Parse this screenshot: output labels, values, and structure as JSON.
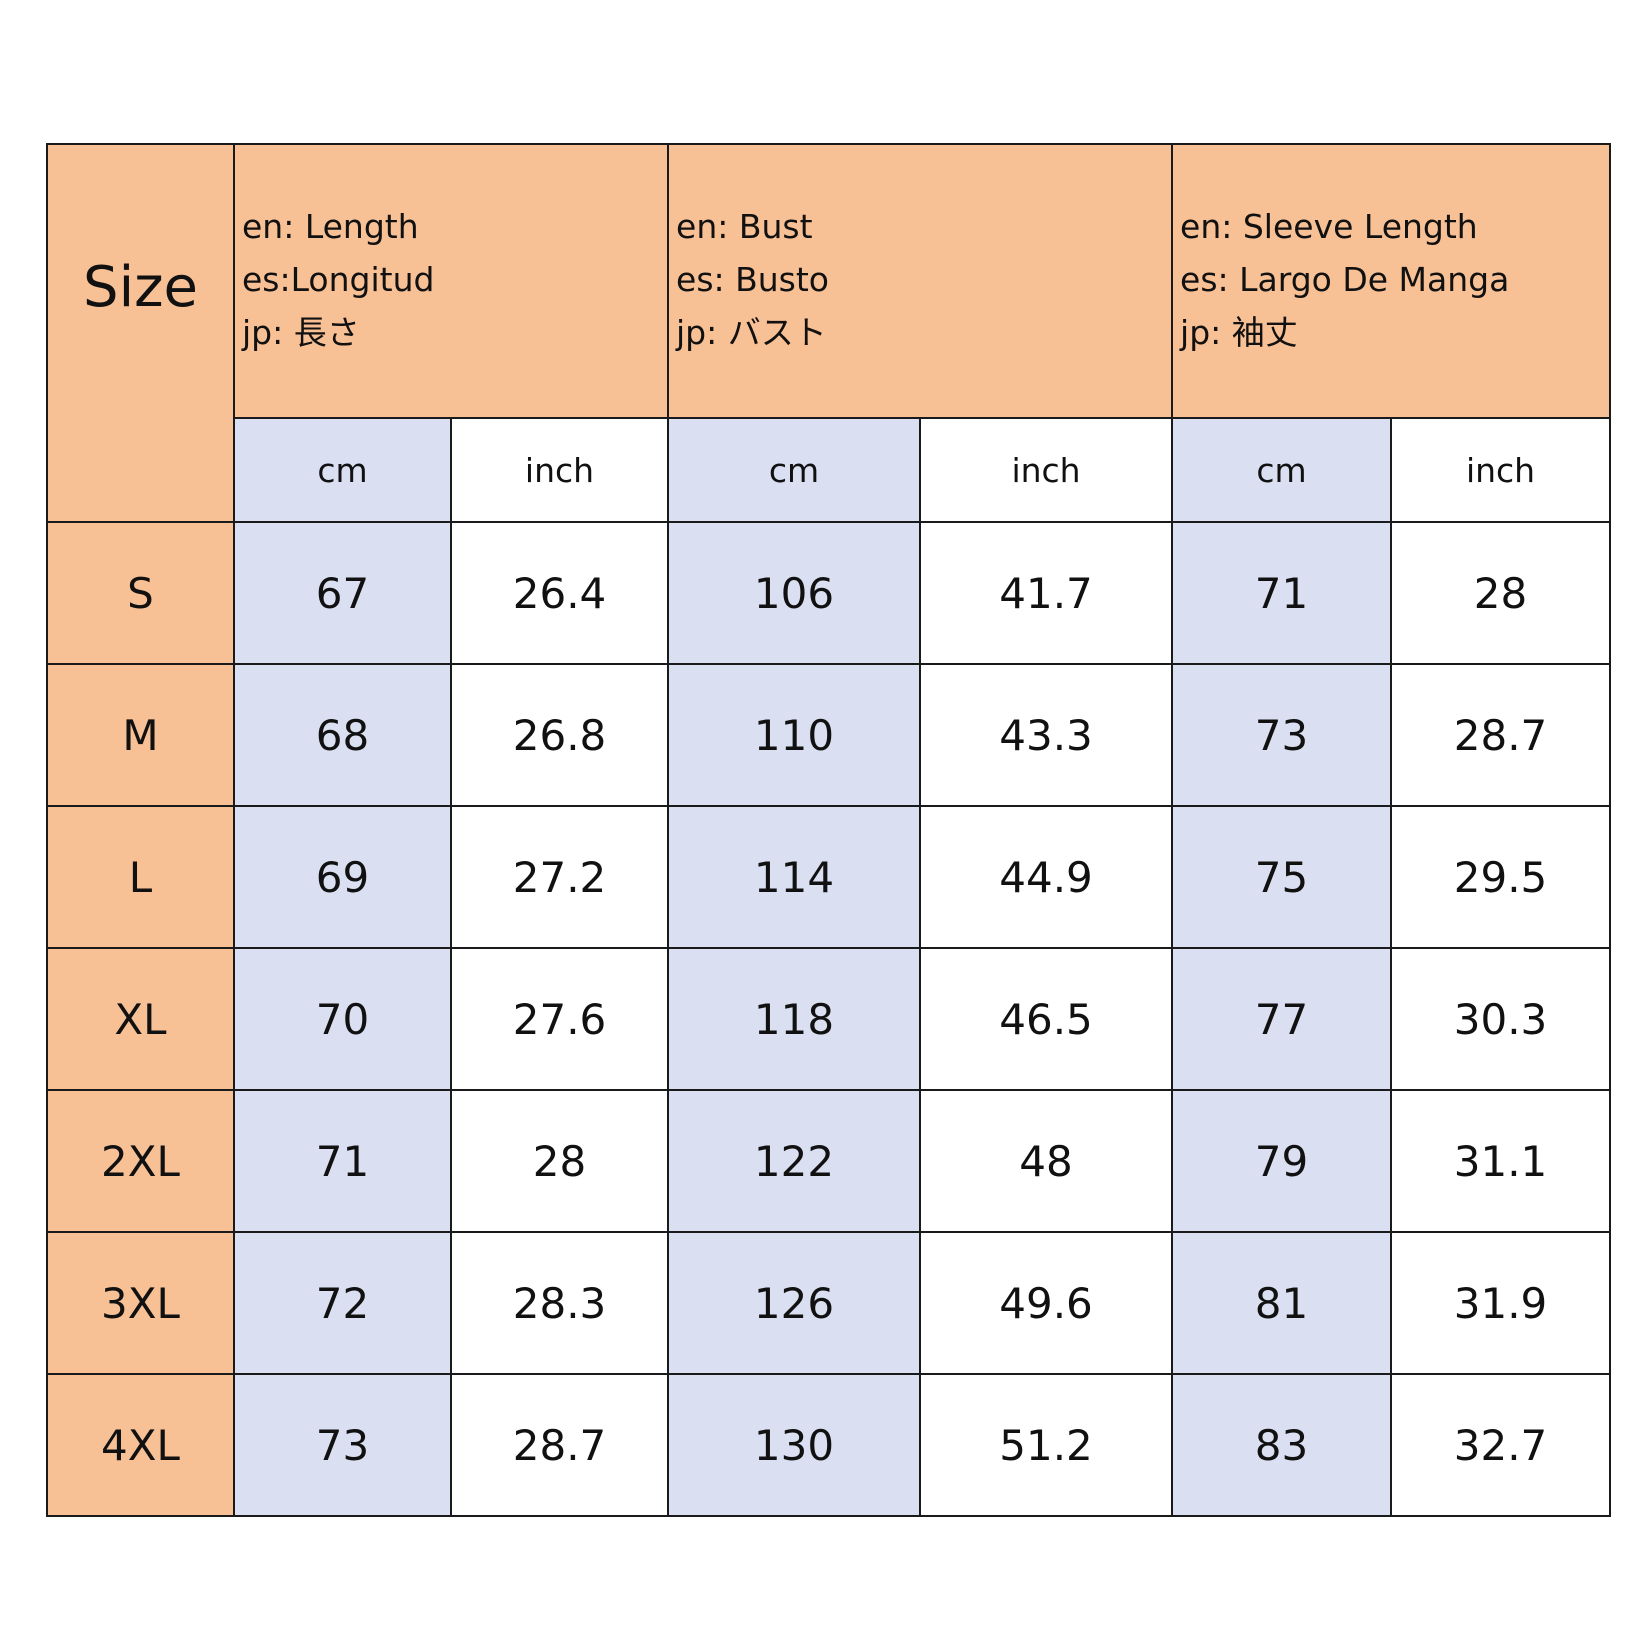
{
  "table": {
    "size_header": "Size",
    "groups": [
      {
        "lines": [
          "en: Length",
          "es:Longitud",
          "jp: 長さ"
        ]
      },
      {
        "lines": [
          "en: Bust",
          "es: Busto",
          "jp: バスト"
        ]
      },
      {
        "lines": [
          "en: Sleeve Length",
          "es: Largo De Manga",
          "jp: 袖丈"
        ]
      }
    ],
    "units": [
      "cm",
      "inch",
      "cm",
      "inch",
      "cm",
      "inch"
    ],
    "rows": [
      {
        "size": "S",
        "values": [
          "67",
          "26.4",
          "106",
          "41.7",
          "71",
          "28"
        ]
      },
      {
        "size": "M",
        "values": [
          "68",
          "26.8",
          "110",
          "43.3",
          "73",
          "28.7"
        ]
      },
      {
        "size": "L",
        "values": [
          "69",
          "27.2",
          "114",
          "44.9",
          "75",
          "29.5"
        ]
      },
      {
        "size": "XL",
        "values": [
          "70",
          "27.6",
          "118",
          "46.5",
          "77",
          "30.3"
        ]
      },
      {
        "size": "2XL",
        "values": [
          "71",
          "28",
          "122",
          "48",
          "79",
          "31.1"
        ]
      },
      {
        "size": "3XL",
        "values": [
          "72",
          "28.3",
          "126",
          "49.6",
          "81",
          "31.9"
        ]
      },
      {
        "size": "4XL",
        "values": [
          "73",
          "28.7",
          "130",
          "51.2",
          "83",
          "32.7"
        ]
      }
    ]
  },
  "colors": {
    "header_orange": "#f8c095",
    "cm_column_blue": "#dae0f2",
    "inch_column_white": "#ffffff",
    "border": "#1a1a1a"
  }
}
